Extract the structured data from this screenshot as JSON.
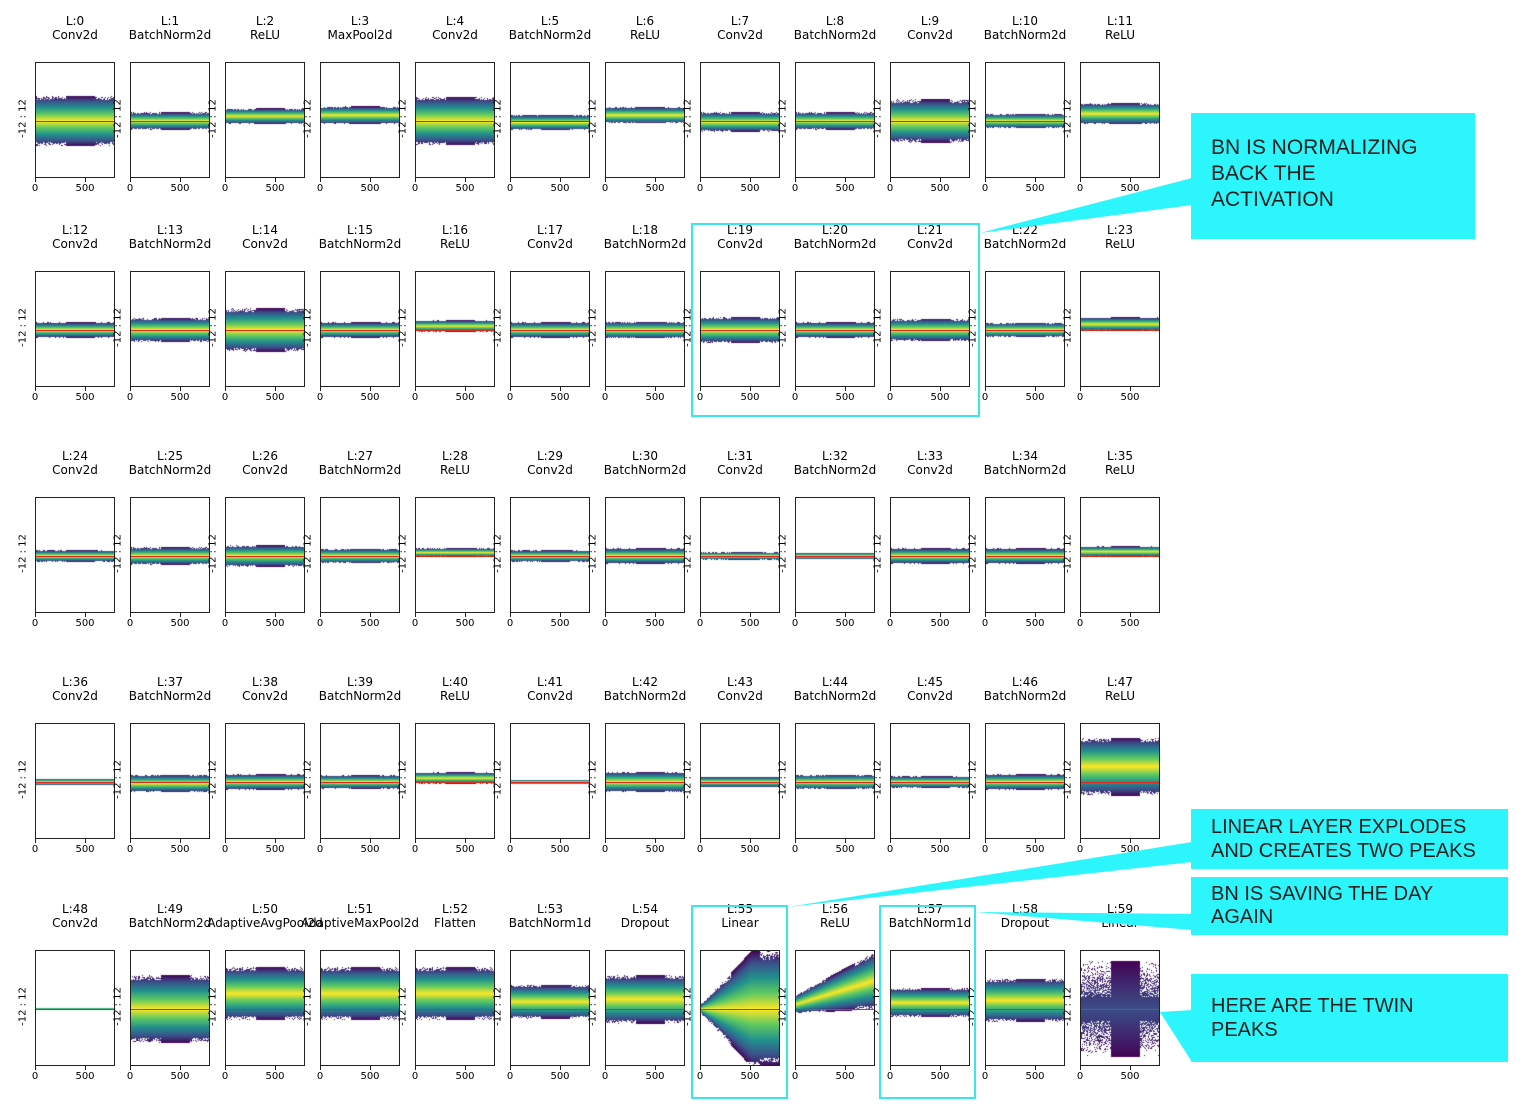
{
  "chart_data": {
    "type": "heatmap",
    "y_axis_label": "-12 : 12",
    "ylim": [
      -12,
      12
    ],
    "x_ticks": [
      0,
      500
    ],
    "zero_line_color": "#e02a1a",
    "colormap": "viridis",
    "layers": [
      {
        "label": "L:0",
        "type": "Conv2d",
        "spread": 5.2,
        "center": 0.0
      },
      {
        "label": "L:1",
        "type": "BatchNorm2d",
        "spread": 1.8,
        "center": 0.0
      },
      {
        "label": "L:2",
        "type": "ReLU",
        "spread": 1.6,
        "center": 1.0
      },
      {
        "label": "L:3",
        "type": "MaxPool2d",
        "spread": 1.8,
        "center": 1.2
      },
      {
        "label": "L:4",
        "type": "Conv2d",
        "spread": 5.0,
        "center": 0.0
      },
      {
        "label": "L:5",
        "type": "BatchNorm2d",
        "spread": 1.6,
        "center": -0.3
      },
      {
        "label": "L:6",
        "type": "ReLU",
        "spread": 1.7,
        "center": 1.2
      },
      {
        "label": "L:7",
        "type": "Conv2d",
        "spread": 2.0,
        "center": -0.2
      },
      {
        "label": "L:8",
        "type": "BatchNorm2d",
        "spread": 1.8,
        "center": 0.0
      },
      {
        "label": "L:9",
        "type": "Conv2d",
        "spread": 4.5,
        "center": 0.0
      },
      {
        "label": "L:10",
        "type": "BatchNorm2d",
        "spread": 1.5,
        "center": 0.0
      },
      {
        "label": "L:11",
        "type": "ReLU",
        "spread": 2.2,
        "center": 1.5
      },
      {
        "label": "L:12",
        "type": "Conv2d",
        "spread": 1.6,
        "center": 0.0
      },
      {
        "label": "L:13",
        "type": "BatchNorm2d",
        "spread": 2.5,
        "center": 0.0
      },
      {
        "label": "L:14",
        "type": "Conv2d",
        "spread": 4.5,
        "center": 0.0
      },
      {
        "label": "L:15",
        "type": "BatchNorm2d",
        "spread": 1.6,
        "center": 0.0
      },
      {
        "label": "L:16",
        "type": "ReLU",
        "spread": 1.2,
        "center": 0.8
      },
      {
        "label": "L:17",
        "type": "Conv2d",
        "spread": 1.6,
        "center": 0.0
      },
      {
        "label": "L:18",
        "type": "BatchNorm2d",
        "spread": 1.7,
        "center": 0.0
      },
      {
        "label": "L:19",
        "type": "Conv2d",
        "spread": 2.7,
        "center": 0.0
      },
      {
        "label": "L:20",
        "type": "BatchNorm2d",
        "spread": 1.6,
        "center": 0.0
      },
      {
        "label": "L:21",
        "type": "Conv2d",
        "spread": 2.3,
        "center": 0.0
      },
      {
        "label": "L:22",
        "type": "BatchNorm2d",
        "spread": 1.5,
        "center": 0.0
      },
      {
        "label": "L:23",
        "type": "ReLU",
        "spread": 1.4,
        "center": 1.2
      },
      {
        "label": "L:24",
        "type": "Conv2d",
        "spread": 1.2,
        "center": 0.0
      },
      {
        "label": "L:25",
        "type": "BatchNorm2d",
        "spread": 1.8,
        "center": 0.0
      },
      {
        "label": "L:26",
        "type": "Conv2d",
        "spread": 2.2,
        "center": 0.0
      },
      {
        "label": "L:27",
        "type": "BatchNorm2d",
        "spread": 1.5,
        "center": 0.0
      },
      {
        "label": "L:28",
        "type": "ReLU",
        "spread": 0.9,
        "center": 0.7
      },
      {
        "label": "L:29",
        "type": "Conv2d",
        "spread": 1.2,
        "center": 0.0
      },
      {
        "label": "L:30",
        "type": "BatchNorm2d",
        "spread": 1.6,
        "center": 0.0
      },
      {
        "label": "L:31",
        "type": "Conv2d",
        "spread": 0.8,
        "center": 0.0
      },
      {
        "label": "L:32",
        "type": "BatchNorm2d",
        "spread": 0.7,
        "center": 0.0
      },
      {
        "label": "L:33",
        "type": "Conv2d",
        "spread": 1.6,
        "center": 0.0
      },
      {
        "label": "L:34",
        "type": "BatchNorm2d",
        "spread": 1.6,
        "center": 0.0
      },
      {
        "label": "L:35",
        "type": "ReLU",
        "spread": 1.1,
        "center": 0.9
      },
      {
        "label": "L:36",
        "type": "Conv2d",
        "spread": 0.7,
        "center": 0.0
      },
      {
        "label": "L:37",
        "type": "BatchNorm2d",
        "spread": 1.8,
        "center": -0.3
      },
      {
        "label": "L:38",
        "type": "Conv2d",
        "spread": 1.6,
        "center": 0.0
      },
      {
        "label": "L:39",
        "type": "BatchNorm2d",
        "spread": 1.4,
        "center": 0.0
      },
      {
        "label": "L:40",
        "type": "ReLU",
        "spread": 1.2,
        "center": 0.8
      },
      {
        "label": "L:41",
        "type": "Conv2d",
        "spread": 0.5,
        "center": 0.0
      },
      {
        "label": "L:42",
        "type": "BatchNorm2d",
        "spread": 2.1,
        "center": 0.0
      },
      {
        "label": "L:43",
        "type": "Conv2d",
        "spread": 1.1,
        "center": 0.0
      },
      {
        "label": "L:44",
        "type": "BatchNorm2d",
        "spread": 1.5,
        "center": 0.0
      },
      {
        "label": "L:45",
        "type": "Conv2d",
        "spread": 1.2,
        "center": 0.0
      },
      {
        "label": "L:46",
        "type": "BatchNorm2d",
        "spread": 1.6,
        "center": 0.0
      },
      {
        "label": "L:47",
        "type": "ReLU",
        "spread": 6.0,
        "center": 3.2
      },
      {
        "label": "L:48",
        "type": "Conv2d",
        "spread": 0.25,
        "center": 0.0
      },
      {
        "label": "L:49",
        "type": "BatchNorm2d",
        "spread": 7.0,
        "center": 0.0
      },
      {
        "label": "L:50",
        "type": "AdaptiveAvgPool2d",
        "spread": 5.5,
        "center": 3.2
      },
      {
        "label": "L:51",
        "type": "AdaptiveMaxPool2d",
        "spread": 5.5,
        "center": 3.2
      },
      {
        "label": "L:52",
        "type": "Flatten",
        "spread": 5.5,
        "center": 3.2
      },
      {
        "label": "L:53",
        "type": "BatchNorm1d",
        "spread": 3.5,
        "center": 1.5
      },
      {
        "label": "L:54",
        "type": "Dropout",
        "spread": 5.0,
        "center": 2.0
      },
      {
        "label": "L:55",
        "type": "Linear",
        "spread": 11.0,
        "center": 0.0
      },
      {
        "label": "L:56",
        "type": "ReLU",
        "spread": 7.0,
        "center": 4.0
      },
      {
        "label": "L:57",
        "type": "BatchNorm1d",
        "spread": 3.0,
        "center": 1.3
      },
      {
        "label": "L:58",
        "type": "Dropout",
        "spread": 4.5,
        "center": 1.8
      },
      {
        "label": "L:59",
        "type": "Linear",
        "spread": 10.0,
        "center": 0.0
      }
    ]
  },
  "annotations": [
    {
      "text": "BN IS NORMALIZING\nBACK THE\nACTIVATION"
    },
    {
      "text": "LINEAR LAYER EXPLODES\nAND CREATES TWO PEAKS"
    },
    {
      "text": "BN IS SAVING THE DAY\nAGAIN"
    },
    {
      "text": "HERE ARE THE TWIN\nPEAKS"
    }
  ],
  "colors": {
    "callout_fill": "#2cf6fb",
    "highlight_border": "#3ae6ec"
  }
}
